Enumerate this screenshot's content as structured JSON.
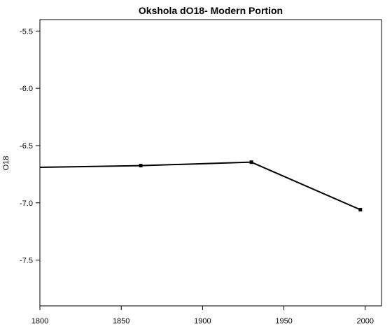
{
  "chart_data": {
    "type": "line",
    "title": "Okshola dO18- Modern Portion",
    "xlabel": "",
    "ylabel": "O18",
    "xlim": [
      1800,
      2010
    ],
    "ylim": [
      -7.9,
      -5.4
    ],
    "x_ticks": [
      1800,
      1850,
      1900,
      1950,
      2000
    ],
    "y_ticks": [
      -5.5,
      -6.0,
      -6.5,
      -7.0,
      -7.5
    ],
    "x_tick_labels": [
      "1800",
      "1850",
      "1900",
      "1950",
      "2000"
    ],
    "y_tick_labels": [
      "-5.5",
      "-6.0",
      "-6.5",
      "-7.0",
      "-7.5"
    ],
    "grid": false,
    "series": [
      {
        "color": "#000000",
        "points": [
          {
            "x": 1800,
            "y": -6.69,
            "marker": false
          },
          {
            "x": 1862,
            "y": -6.675,
            "marker": true
          },
          {
            "x": 1930,
            "y": -6.645,
            "marker": true
          },
          {
            "x": 1997,
            "y": -7.06,
            "marker": true
          }
        ]
      }
    ]
  }
}
